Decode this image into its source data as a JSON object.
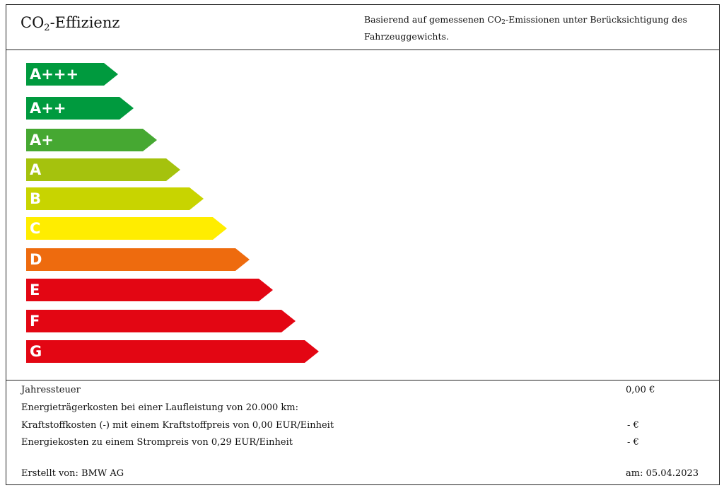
{
  "header": {
    "title_pre": "CO",
    "title_sub": "2",
    "title_post": "-Effizienz",
    "desc_pre": "Basierend auf gemessenen CO",
    "desc_sub": "2",
    "desc_post": "-Emissionen unter Berücksichtigung des Fahrzeuggewichts."
  },
  "classes": [
    {
      "label": "A+++",
      "color": "#009a3e"
    },
    {
      "label": "A++",
      "color": "#009a3e"
    },
    {
      "label": "A+",
      "color": "#46a832"
    },
    {
      "label": "A",
      "color": "#a5c20d"
    },
    {
      "label": "B",
      "color": "#c8d400"
    },
    {
      "label": "C",
      "color": "#ffed00"
    },
    {
      "label": "D",
      "color": "#ee6b0e"
    },
    {
      "label": "E",
      "color": "#e30613"
    },
    {
      "label": "F",
      "color": "#e30613"
    },
    {
      "label": "G",
      "color": "#e30613"
    }
  ],
  "info": {
    "tax_label": "Jahressteuer",
    "tax_value": "0,00 €",
    "energy_costs_label": "Energieträgerkosten bei einer Laufleistung von 20.000 km:",
    "fuel_label": "Kraftstoffkosten (-) mit einem Kraftstoffpreis von 0,00 EUR/Einheit",
    "fuel_value": "- €",
    "electricity_label": "Energiekosten zu einem Strompreis von 0,29 EUR/Einheit",
    "electricity_value": "- €",
    "created_by": "Erstellt von: BMW AG",
    "date": "am: 05.04.2023"
  }
}
